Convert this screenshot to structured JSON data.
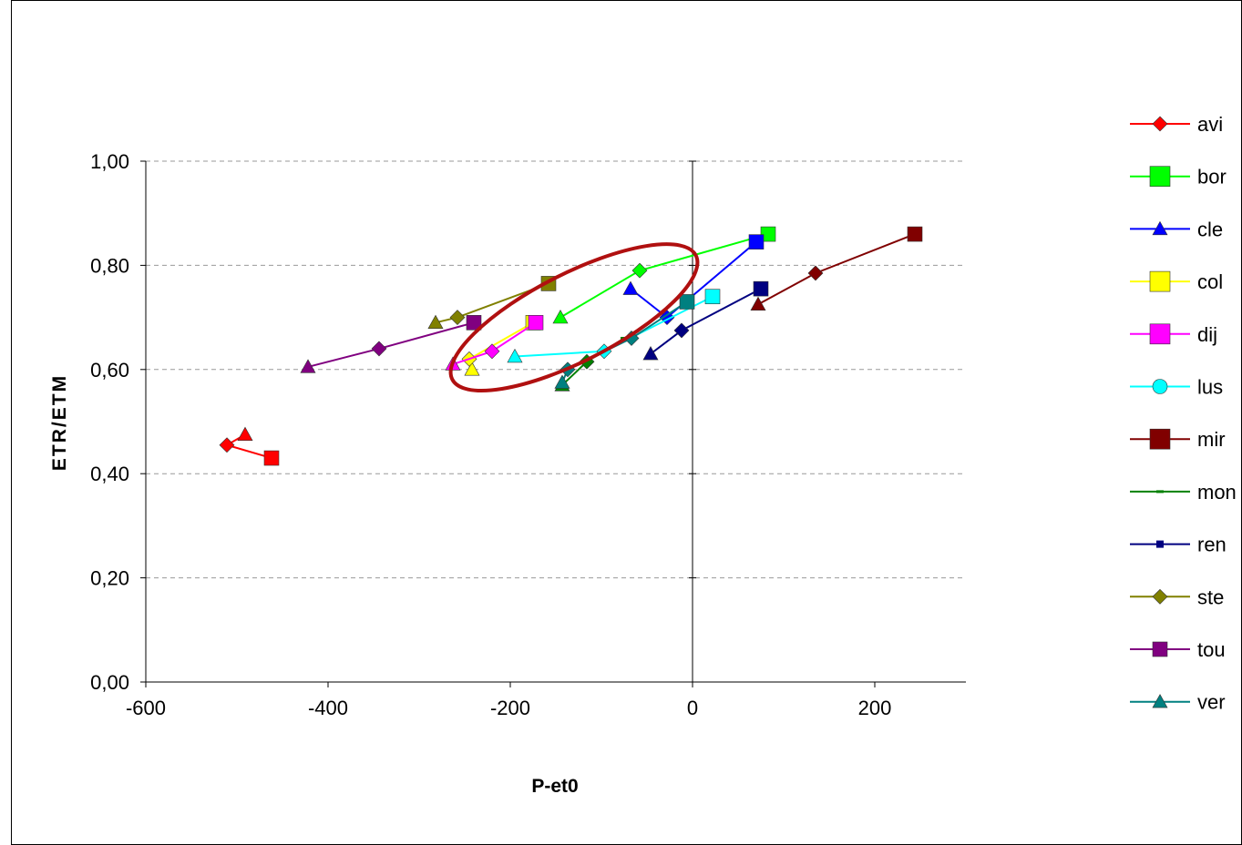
{
  "chart_data": {
    "type": "scatter",
    "xlabel": "P-et0",
    "ylabel": "ETR/ETM",
    "xlim": [
      -600,
      300
    ],
    "ylim": [
      0,
      1.05
    ],
    "x_ticks": [
      -600,
      -400,
      -200,
      0,
      200
    ],
    "x_tick_labels": [
      "-600",
      "-400",
      "-200",
      "0",
      "200"
    ],
    "y_ticks": [
      0,
      0.2,
      0.4,
      0.6,
      0.8,
      1.0
    ],
    "y_tick_labels": [
      "0,00",
      "0,20",
      "0,40",
      "0,60",
      "0,80",
      "1,00"
    ],
    "grid": "horizontal-dashed",
    "legend_position": "right",
    "series": [
      {
        "name": "avi",
        "color": "#ff0000",
        "points": [
          [
            -491,
            0.475
          ],
          [
            -511,
            0.455
          ],
          [
            -462,
            0.43
          ]
        ],
        "markers": [
          "triangle",
          "diamond",
          "square"
        ]
      },
      {
        "name": "bor",
        "color": "#00ff00",
        "points": [
          [
            -145,
            0.7
          ],
          [
            -58,
            0.79
          ],
          [
            83,
            0.86
          ]
        ],
        "markers": [
          "triangle",
          "diamond",
          "square"
        ]
      },
      {
        "name": "cle",
        "color": "#0000ff",
        "points": [
          [
            -68,
            0.755
          ],
          [
            -28,
            0.7
          ],
          [
            70,
            0.845
          ]
        ],
        "markers": [
          "triangle",
          "diamond",
          "square"
        ]
      },
      {
        "name": "col",
        "color": "#ffff00",
        "points": [
          [
            -242,
            0.6
          ],
          [
            -245,
            0.62
          ],
          [
            -175,
            0.69
          ]
        ],
        "markers": [
          "triangle",
          "diamond",
          "square"
        ]
      },
      {
        "name": "dij",
        "color": "#ff00ff",
        "points": [
          [
            -263,
            0.61
          ],
          [
            -220,
            0.635
          ],
          [
            -172,
            0.69
          ]
        ],
        "markers": [
          "triangle",
          "diamond",
          "square"
        ]
      },
      {
        "name": "lus",
        "color": "#00ffff",
        "points": [
          [
            -195,
            0.625
          ],
          [
            -97,
            0.635
          ],
          [
            22,
            0.74
          ]
        ],
        "markers": [
          "triangle",
          "diamond",
          "square"
        ]
      },
      {
        "name": "mir",
        "color": "#800000",
        "points": [
          [
            72,
            0.725
          ],
          [
            135,
            0.785
          ],
          [
            244,
            0.86
          ]
        ],
        "markers": [
          "triangle",
          "diamond",
          "square"
        ]
      },
      {
        "name": "mon",
        "color": "#008000",
        "points": [
          [
            -143,
            0.57
          ],
          [
            -116,
            0.615
          ],
          [
            -75,
            0.66
          ]
        ],
        "markers": [
          "triangle",
          "diamond",
          "dash"
        ]
      },
      {
        "name": "ren",
        "color": "#000080",
        "points": [
          [
            -46,
            0.63
          ],
          [
            -12,
            0.675
          ],
          [
            75,
            0.755
          ]
        ],
        "markers": [
          "triangle",
          "diamond",
          "square"
        ]
      },
      {
        "name": "ste",
        "color": "#808000",
        "points": [
          [
            -282,
            0.69
          ],
          [
            -258,
            0.7
          ],
          [
            -158,
            0.765
          ]
        ],
        "markers": [
          "triangle",
          "diamond",
          "square"
        ]
      },
      {
        "name": "tou",
        "color": "#800080",
        "points": [
          [
            -422,
            0.605
          ],
          [
            -344,
            0.64
          ],
          [
            -240,
            0.69
          ]
        ],
        "markers": [
          "triangle",
          "diamond",
          "square"
        ]
      },
      {
        "name": "ver",
        "color": "#008080",
        "points": [
          [
            -143,
            0.575
          ],
          [
            -137,
            0.6
          ],
          [
            -67,
            0.66
          ],
          [
            -6,
            0.73
          ]
        ],
        "markers": [
          "triangle",
          "diamond",
          "diamond",
          "square"
        ]
      }
    ],
    "annotation": {
      "shape": "ellipse",
      "color": "#b01010",
      "center": [
        -130,
        0.7
      ],
      "note": ""
    }
  }
}
